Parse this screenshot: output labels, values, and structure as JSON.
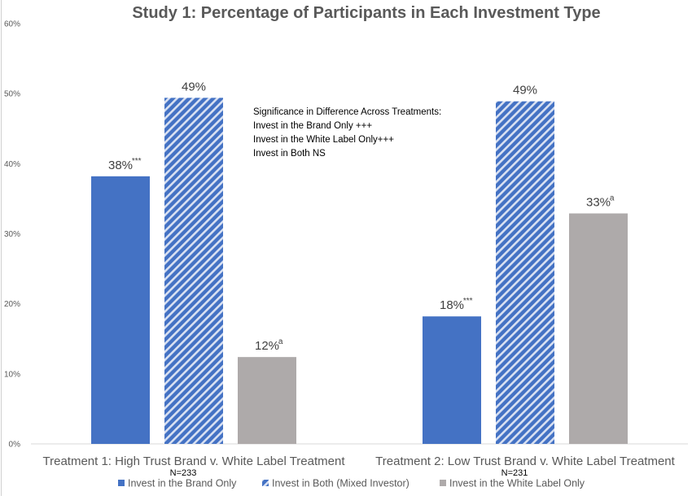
{
  "chart_data": {
    "type": "bar",
    "title": "Study 1: Percentage of Participants in Each Investment Type",
    "xlabel": "",
    "ylabel": "",
    "ylim": [
      0,
      60
    ],
    "yticks": [
      "0%",
      "10%",
      "20%",
      "30%",
      "40%",
      "50%",
      "60%"
    ],
    "grid": false,
    "legend_position": "bottom",
    "categories": [
      "Treatment 1: High Trust Brand v. White Label Treatment",
      "Treatment 2: Low Trust Brand v. White Label Treatment"
    ],
    "category_notes": [
      "N=233",
      "N=231"
    ],
    "series": [
      {
        "name": "Invest in the Brand Only",
        "color": "#4472c4",
        "pattern": "solid",
        "values": [
          38.2,
          18.2
        ],
        "labels": [
          "38%",
          "18%"
        ],
        "label_superscripts": [
          "***",
          "***"
        ]
      },
      {
        "name": "Invest in Both (Mixed Investor)",
        "color": "#4472c4",
        "pattern": "diagonal-stripes",
        "values": [
          49.4,
          48.9
        ],
        "labels": [
          "49%",
          "49%"
        ],
        "label_superscripts": [
          "",
          ""
        ]
      },
      {
        "name": "Invest in the White Label Only",
        "color": "#aeaaaa",
        "pattern": "solid",
        "values": [
          12.4,
          32.9
        ],
        "labels": [
          "12%",
          "33%"
        ],
        "label_superscripts": [
          "a",
          "a"
        ]
      }
    ],
    "annotation": [
      "Significance in Difference Across Treatments:",
      "Invest in the Brand Only +++",
      "Invest in the White Label Only+++",
      "Invest in Both NS"
    ]
  }
}
